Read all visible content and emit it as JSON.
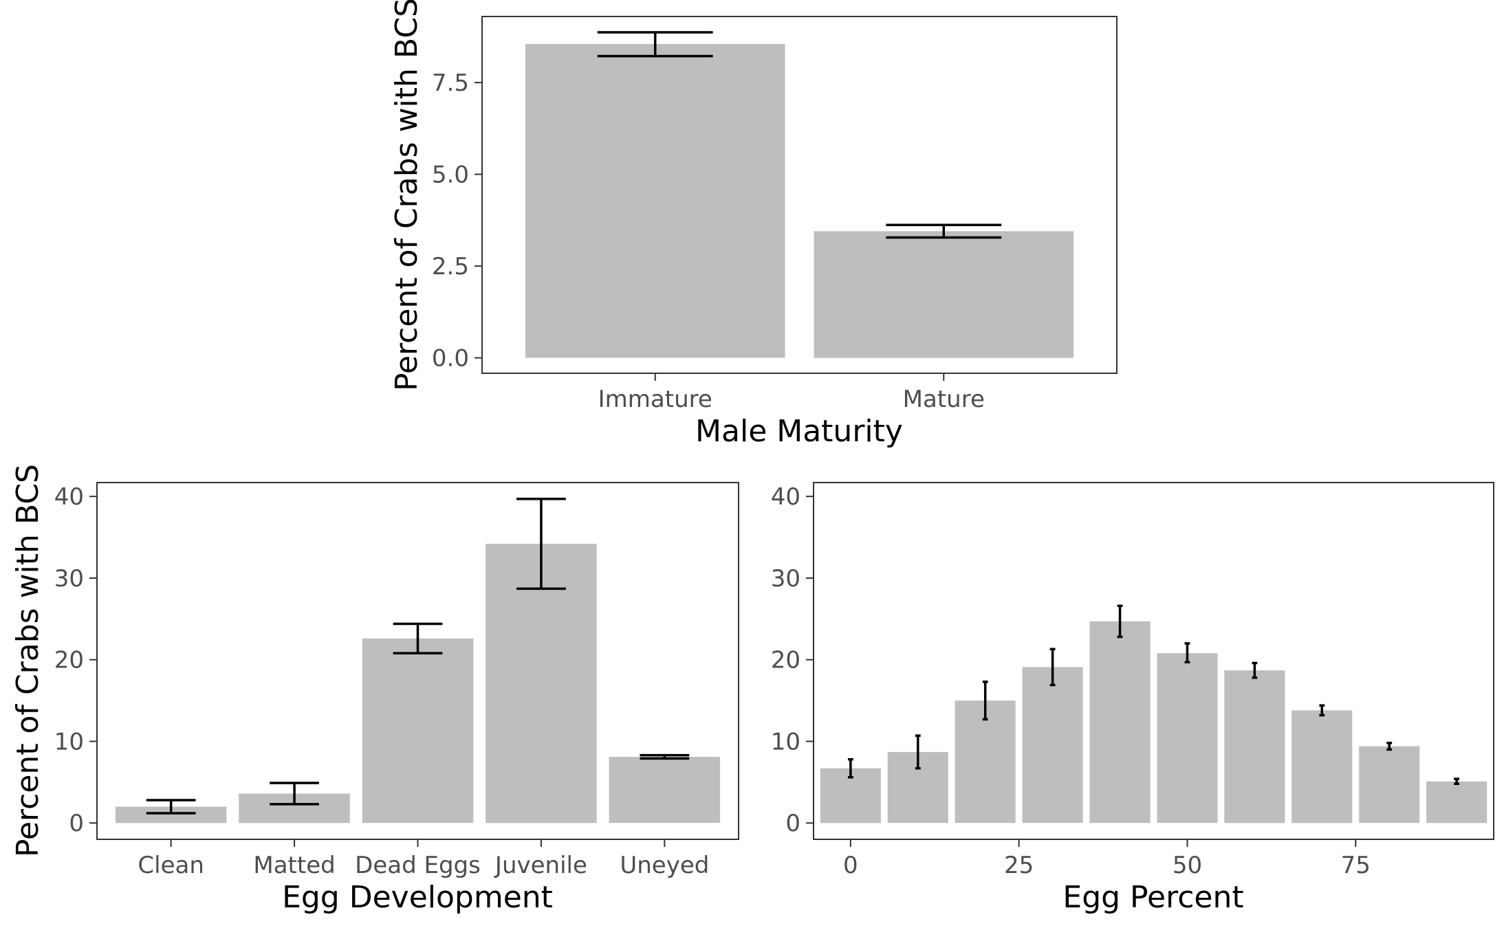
{
  "colors": {
    "bar": "#bebebe",
    "errorbar": "#000000",
    "panel_border": "#333333",
    "axis_text": "#4d4d4d"
  },
  "chart_data": [
    {
      "id": "male",
      "type": "bar",
      "error_bars": true,
      "categories": [
        "Immature",
        "Mature"
      ],
      "values": [
        8.55,
        3.45
      ],
      "error_low": [
        8.22,
        3.28
      ],
      "error_high": [
        8.87,
        3.62
      ],
      "xlabel": "Male Maturity",
      "ylabel": "Percent of Crabs with BCS",
      "ylim": [
        -0.42,
        9.3
      ],
      "yticks": [
        0,
        2.5,
        5,
        7.5
      ],
      "ytick_labels": [
        "0.0",
        "2.5",
        "5.0",
        "7.5"
      ],
      "grid": false
    },
    {
      "id": "eggdev",
      "type": "bar",
      "error_bars": true,
      "categories": [
        "Clean",
        "Matted",
        "Dead Eggs",
        "Juvenile",
        "Uneyed"
      ],
      "values": [
        2.0,
        3.6,
        22.6,
        34.2,
        8.1
      ],
      "error_low": [
        1.2,
        2.3,
        20.8,
        28.7,
        7.9
      ],
      "error_high": [
        2.8,
        4.9,
        24.4,
        39.7,
        8.3
      ],
      "xlabel": "Egg Development",
      "ylabel": "Percent of Crabs with BCS",
      "ylim": [
        -2.0,
        41.7
      ],
      "yticks": [
        0,
        10,
        20,
        30,
        40
      ],
      "ytick_labels": [
        "0",
        "10",
        "20",
        "30",
        "40"
      ],
      "grid": false
    },
    {
      "id": "eggpct",
      "type": "bar",
      "error_bars": true,
      "x": [
        0,
        10,
        20,
        30,
        40,
        50,
        60,
        70,
        80,
        90
      ],
      "values": [
        6.7,
        8.7,
        15.0,
        19.1,
        24.7,
        20.8,
        18.7,
        13.8,
        9.4,
        5.1
      ],
      "error_low": [
        5.6,
        6.7,
        12.7,
        16.9,
        22.8,
        19.7,
        17.8,
        13.2,
        9.0,
        4.8
      ],
      "error_high": [
        7.8,
        10.7,
        17.3,
        21.3,
        26.6,
        22.0,
        19.6,
        14.4,
        9.8,
        5.4
      ],
      "xlabel": "Egg Percent",
      "ylabel": "",
      "xlim": [
        -5.5,
        95.5
      ],
      "xticks": [
        0,
        25,
        50,
        75
      ],
      "xtick_labels": [
        "0",
        "25",
        "50",
        "75"
      ],
      "ylim": [
        -2.0,
        41.7
      ],
      "yticks": [
        0,
        10,
        20,
        30,
        40
      ],
      "ytick_labels": [
        "0",
        "10",
        "20",
        "30",
        "40"
      ],
      "grid": false
    }
  ]
}
